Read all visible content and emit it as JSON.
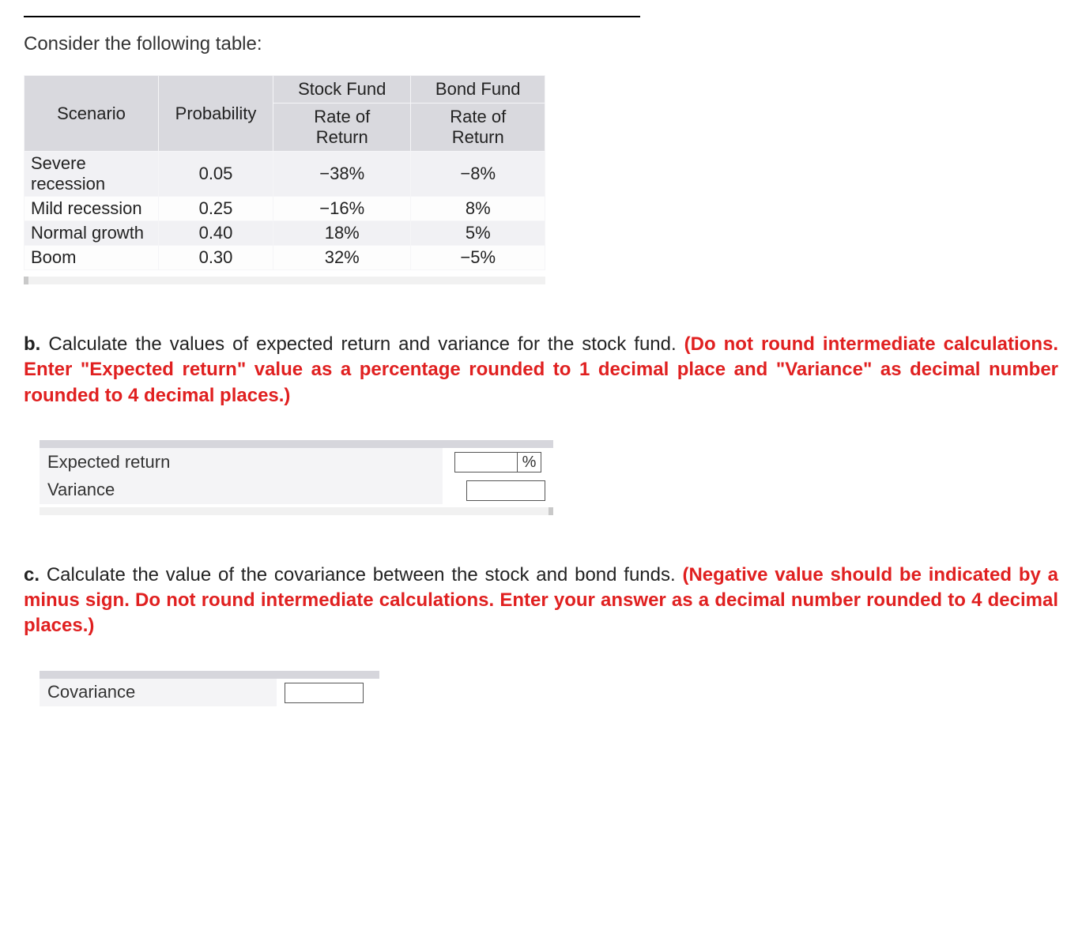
{
  "intro_text": "Consider the following table:",
  "data_table": {
    "columns": [
      "Scenario",
      "Probability",
      "Stock Fund Rate of Return",
      "Bond Fund Rate of Return"
    ],
    "header_lines": {
      "col3_line1": "Stock Fund",
      "col3_line2": "Rate of",
      "col3_line3": "Return",
      "col4_line1": "Bond Fund",
      "col4_line2": "Rate of",
      "col4_line3": "Return"
    },
    "rows": [
      {
        "scenario": "Severe recession",
        "probability": "0.05",
        "stock": "−38%",
        "bond": "−8%"
      },
      {
        "scenario": "Mild recession",
        "probability": "0.25",
        "stock": "−16%",
        "bond": "8%"
      },
      {
        "scenario": "Normal growth",
        "probability": "0.40",
        "stock": "18%",
        "bond": "5%"
      },
      {
        "scenario": "Boom",
        "probability": "0.30",
        "stock": "32%",
        "bond": "−5%"
      }
    ],
    "header_bg": "#d9d9de",
    "row_alt_bg": "#f1f1f4"
  },
  "question_b": {
    "label": "b.",
    "black": "Calculate the values of expected return and variance for the stock fund. ",
    "red": "(Do not round intermediate calculations. Enter \"Expected return\" value as a percentage rounded to 1 decimal place and \"Variance\" as decimal number rounded to 4 decimal places.)"
  },
  "answer_b": {
    "rows": [
      {
        "label": "Expected return",
        "has_percent": true
      },
      {
        "label": "Variance",
        "has_percent": false
      }
    ],
    "percent_sign": "%"
  },
  "question_c": {
    "label": "c.",
    "black": "Calculate the value of the covariance between the stock and bond funds. ",
    "red": "(Negative value should be indicated by a minus sign. Do not round intermediate calculations. Enter your answer as a decimal number rounded to 4 decimal places.)"
  },
  "answer_c": {
    "label": "Covariance"
  },
  "colors": {
    "red": "#e02020",
    "highlight_rule": "#ffff00",
    "text": "#333333"
  }
}
